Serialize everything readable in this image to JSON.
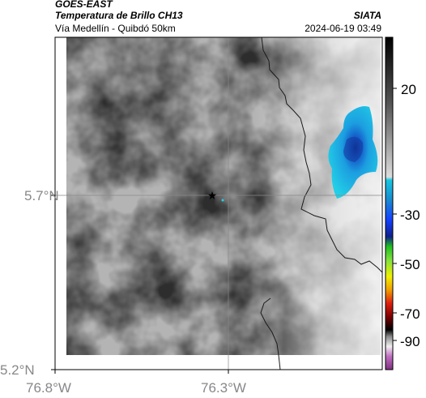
{
  "header": {
    "source": "GOES-EAST",
    "product": "Temperatura de Brillo CH13",
    "route": "Vía Medellín - Quibdó 50km",
    "org": "SIATA",
    "datetime": "2024-06-19 03:49"
  },
  "axes": {
    "x_ticks": [
      "76.8°W",
      "76.3°W"
    ],
    "y_ticks": [
      "5.7°N",
      "5.2°N"
    ]
  },
  "colorbar": {
    "ticks": [
      "20",
      "-30",
      "-50",
      "-70",
      "-90"
    ],
    "colors": {
      "warm_top": "#000000",
      "gray_mid": "#d9d9d9",
      "cyan": "#16c6e0",
      "blue": "#1440ff",
      "green": "#20c020",
      "yellow": "#f0f000",
      "red": "#e02010",
      "dark_red": "#800000",
      "black": "#000000",
      "light_gray": "#f0f0f0",
      "purple": "#a040a0"
    }
  },
  "marker": {
    "icon": "star-icon"
  }
}
